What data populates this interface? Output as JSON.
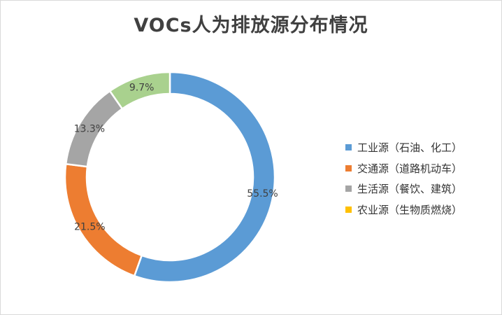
{
  "chart_data": {
    "type": "pie",
    "title": "VOCs人为排放源分布情况",
    "categories": [
      "工业源（石油、化工）",
      "交通源（道路机动车）",
      "生活源（餐饮、建筑）",
      "农业源（生物质燃烧）"
    ],
    "values": [
      55.5,
      21.5,
      13.3,
      9.7
    ],
    "data_labels": [
      "55.5%",
      "21.5%",
      "13.3%",
      "9.7%"
    ],
    "colors": [
      "#5b9bd5",
      "#ed7d31",
      "#a5a5a5",
      "#a9d18e"
    ],
    "legend_colors": [
      "#5b9bd5",
      "#ed7d31",
      "#a5a5a5",
      "#ffc000"
    ],
    "legend_placement": "right",
    "donut": true
  }
}
